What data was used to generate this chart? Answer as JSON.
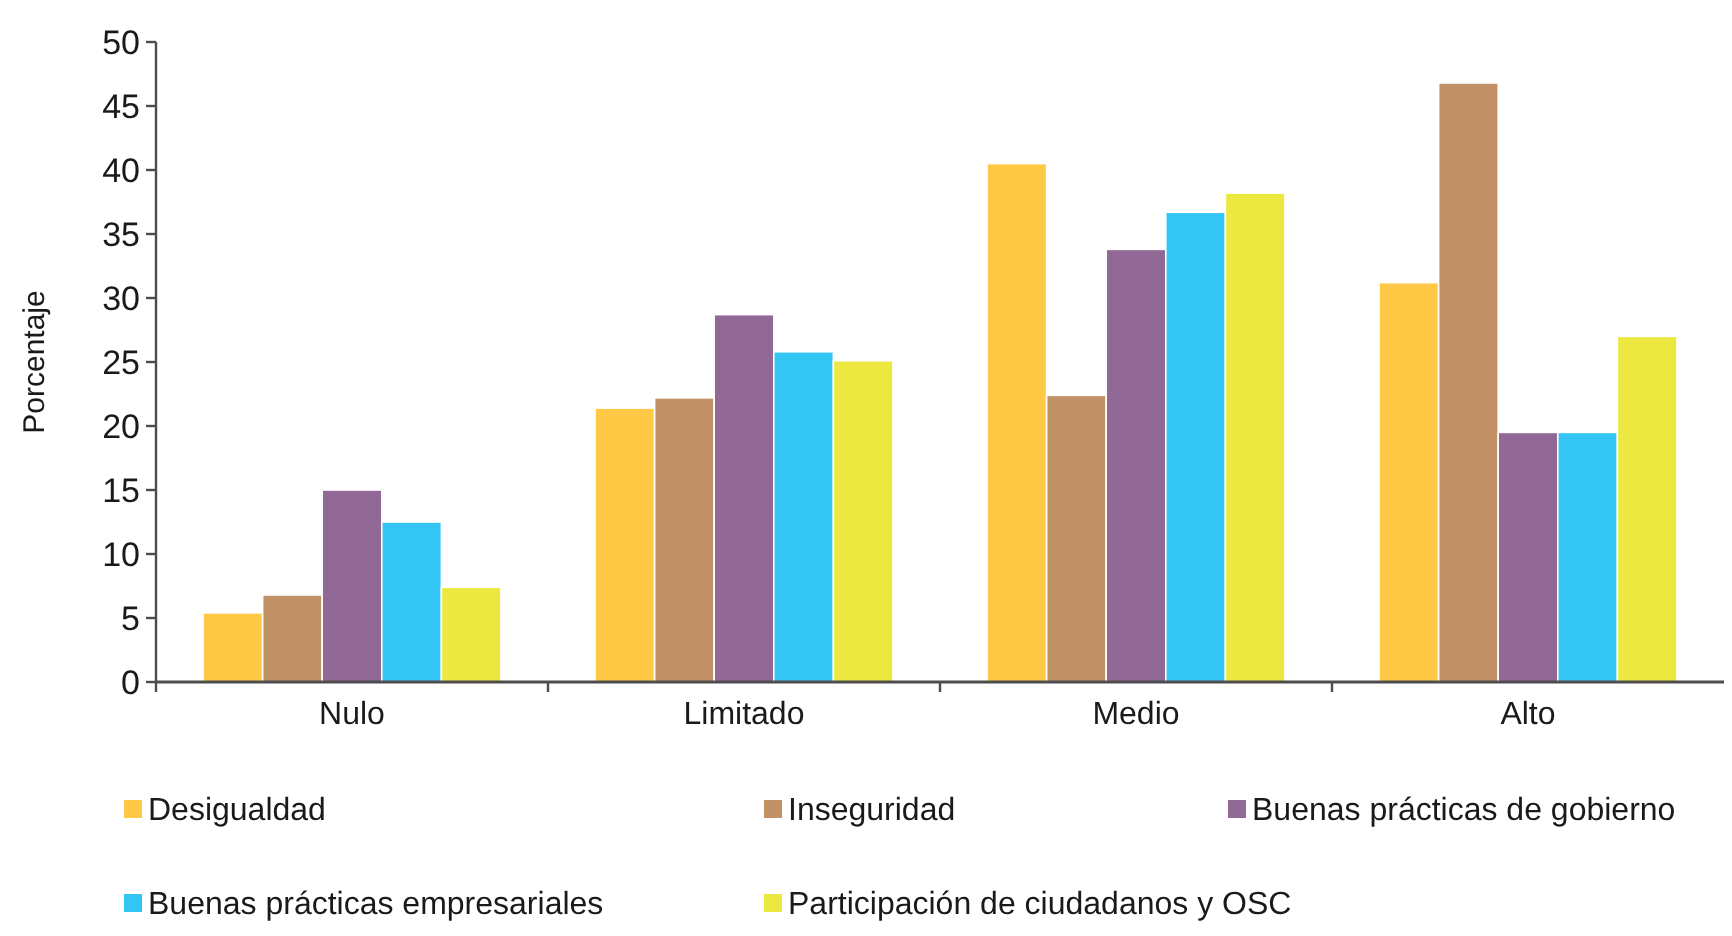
{
  "chart_data": {
    "type": "bar",
    "ylabel": "Porcentaje",
    "categories": [
      "Nulo",
      "Limitado",
      "Medio",
      "Alto"
    ],
    "series": [
      {
        "name": "Desigualdad",
        "color": "#ffc845",
        "values": [
          5.4,
          21.4,
          40.5,
          31.2
        ]
      },
      {
        "name": "Inseguridad",
        "color": "#c29166",
        "values": [
          6.8,
          22.2,
          22.4,
          46.8
        ]
      },
      {
        "name": "Buenas prácticas de gobierno",
        "color": "#926897",
        "values": [
          15.0,
          28.7,
          33.8,
          19.5
        ]
      },
      {
        "name": "Buenas prácticas empresariales",
        "color": "#33c5f3",
        "values": [
          12.5,
          25.8,
          36.7,
          19.5
        ]
      },
      {
        "name": "Participación de ciudadanos y OSC",
        "color": "#ede840",
        "values": [
          7.4,
          25.1,
          38.2,
          27.0
        ]
      }
    ],
    "ylim": [
      0,
      50
    ],
    "yticks": [
      0,
      5,
      10,
      15,
      20,
      25,
      30,
      35,
      40,
      45,
      50
    ],
    "legend": "bottom"
  }
}
